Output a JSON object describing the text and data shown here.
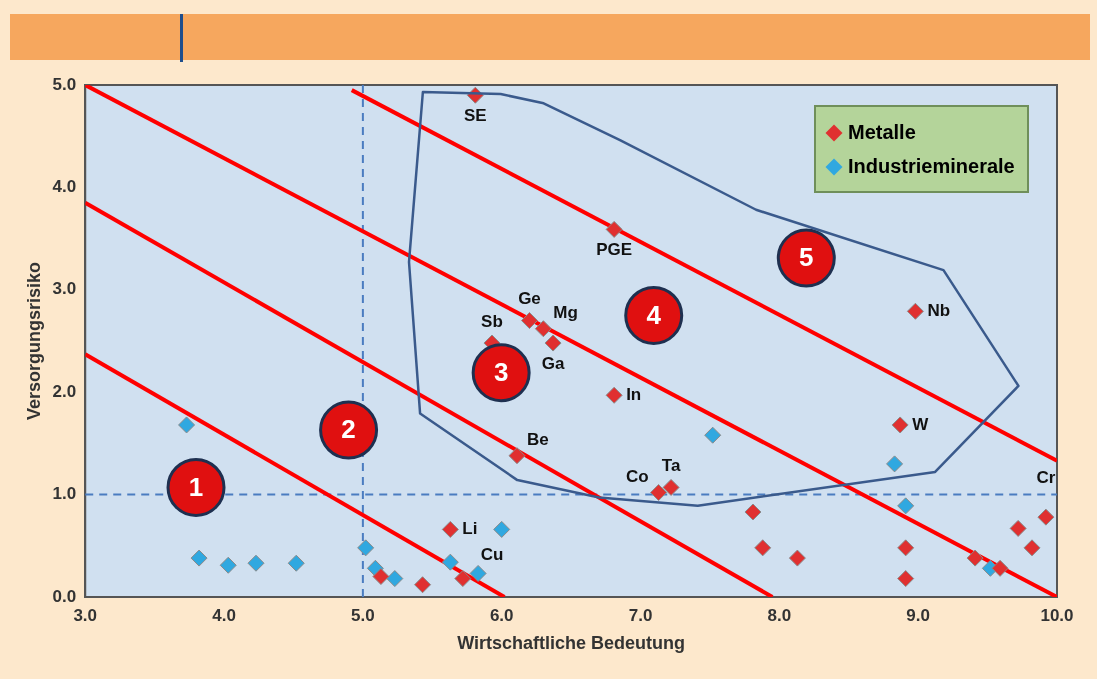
{
  "chart_data": {
    "type": "scatter",
    "xlabel": "Wirtschaftliche Bedeutung",
    "ylabel": "Versorgungsrisiko",
    "xlim": [
      3,
      10
    ],
    "xticks": [
      {
        "value": 3,
        "label": "3.0"
      },
      {
        "value": 4,
        "label": "4.0"
      },
      {
        "value": 5,
        "label": "5.0"
      },
      {
        "value": 6,
        "label": "6.0"
      },
      {
        "value": 7,
        "label": "7.0"
      },
      {
        "value": 8,
        "label": "8.0"
      },
      {
        "value": 9,
        "label": "9.0"
      },
      {
        "value": 10,
        "label": "10.0"
      }
    ],
    "ylim": [
      0,
      5
    ],
    "yticks": [
      {
        "value": 0,
        "label": "0.0"
      },
      {
        "value": 1,
        "label": "1.0"
      },
      {
        "value": 2,
        "label": "2.0"
      },
      {
        "value": 3,
        "label": "3.0"
      },
      {
        "value": 4,
        "label": "4.0"
      },
      {
        "value": 5,
        "label": "5.0"
      }
    ],
    "grid": false,
    "legend": "top right",
    "marker": "diamond",
    "series": [
      {
        "name": "Metalle",
        "color": "#e03030",
        "x": [
          5.81,
          6.81,
          6.2,
          6.3,
          6.37,
          5.93,
          6.81,
          6.11,
          8.98,
          8.87,
          7.13,
          7.22,
          7.81,
          7.88,
          8.13,
          8.91,
          8.91,
          9.41,
          9.59,
          9.72,
          9.92,
          9.82,
          5.63,
          5.13,
          5.43,
          5.72
        ],
        "values": [
          4.9,
          3.59,
          2.7,
          2.62,
          2.48,
          2.48,
          1.97,
          1.38,
          2.79,
          1.68,
          1.02,
          1.07,
          0.83,
          0.48,
          0.38,
          0.48,
          0.18,
          0.38,
          0.28,
          0.67,
          0.78,
          0.48,
          0.66,
          0.2,
          0.12,
          0.18
        ],
        "value_labels": [
          "SE",
          "PGE",
          "Ge",
          "Mg",
          "Ga",
          "Sb",
          "In",
          "Be",
          "Nb",
          "W",
          "Co",
          "Ta",
          null,
          null,
          null,
          null,
          null,
          null,
          null,
          null,
          "Cr",
          null,
          "Li",
          null,
          null,
          "Cu"
        ]
      },
      {
        "name": "Industrieminerale",
        "color": "#30a8e0",
        "x": [
          3.73,
          3.82,
          4.03,
          4.23,
          4.52,
          5.02,
          5.09,
          5.23,
          5.63,
          5.83,
          6.0,
          7.52,
          8.83,
          8.91,
          9.52
        ],
        "values": [
          1.68,
          0.38,
          0.31,
          0.33,
          0.33,
          0.48,
          0.28,
          0.18,
          0.34,
          0.23,
          0.66,
          1.58,
          1.3,
          0.89,
          0.28
        ]
      },
      {
        "type": "line",
        "marker": "none",
        "color": "#ff0000",
        "x": [
          3,
          6.02
        ],
        "values": [
          2.37,
          0
        ]
      },
      {
        "type": "line",
        "marker": "none",
        "color": "#ff0000",
        "x": [
          3,
          7.95
        ],
        "values": [
          3.85,
          0
        ]
      },
      {
        "type": "line",
        "marker": "none",
        "color": "#ff0000",
        "x": [
          3,
          10
        ],
        "values": [
          5,
          0
        ]
      },
      {
        "type": "line",
        "marker": "none",
        "color": "#ff0000",
        "x": [
          4.92,
          10
        ],
        "values": [
          4.95,
          1.33
        ]
      }
    ],
    "ref_lines": [
      {
        "axis": "x",
        "value": 5,
        "color": "#4a7cc0",
        "line_style": "dashed"
      },
      {
        "axis": "y",
        "value": 1,
        "color": "#4a7cc0",
        "line_style": "dashed"
      }
    ],
    "annotations": [
      "1",
      "2",
      "3",
      "4",
      "5"
    ]
  }
}
